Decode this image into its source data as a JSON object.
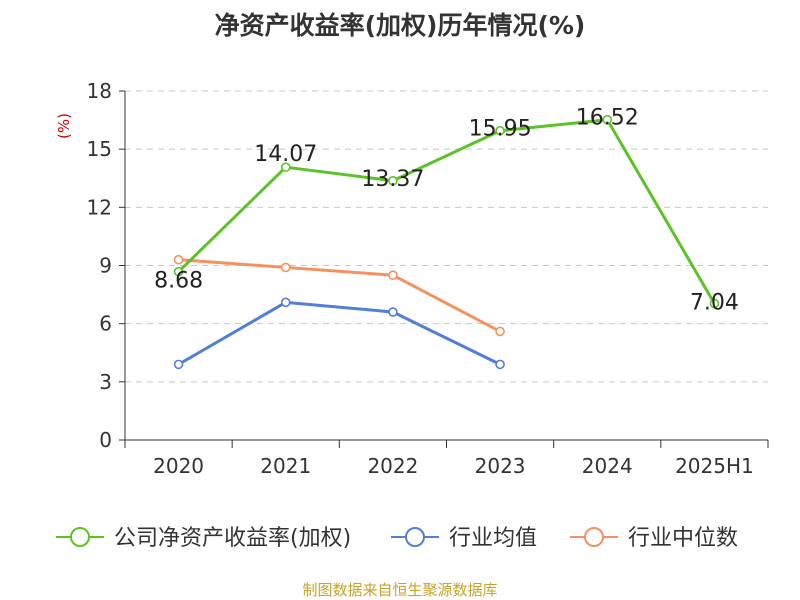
{
  "chart_data": {
    "type": "line",
    "title": "净资产收益率(加权)历年情况(%)",
    "ylabel": "(%)",
    "xlabel": "",
    "categories": [
      "2020",
      "2021",
      "2022",
      "2023",
      "2024",
      "2025H1"
    ],
    "ylim": [
      0,
      18
    ],
    "yticks": [
      0,
      3,
      6,
      9,
      12,
      15,
      18
    ],
    "grid": true,
    "legend_position": "bottom",
    "series": [
      {
        "name": "公司净资产收益率(加权)",
        "color": "#5cc327",
        "values": [
          8.68,
          14.07,
          13.37,
          15.95,
          16.52,
          7.04
        ],
        "labels": [
          "8.68",
          "14.07",
          "13.37",
          "15.95",
          "16.52",
          "7.04"
        ]
      },
      {
        "name": "行业均值",
        "color": "#4f7fd9",
        "values": [
          3.9,
          7.1,
          6.6,
          3.9,
          null,
          null
        ]
      },
      {
        "name": "行业中位数",
        "color": "#f59060",
        "values": [
          9.3,
          8.9,
          8.5,
          5.6,
          null,
          null
        ]
      }
    ]
  },
  "footer": {
    "source": "制图数据来自恒生聚源数据库"
  }
}
